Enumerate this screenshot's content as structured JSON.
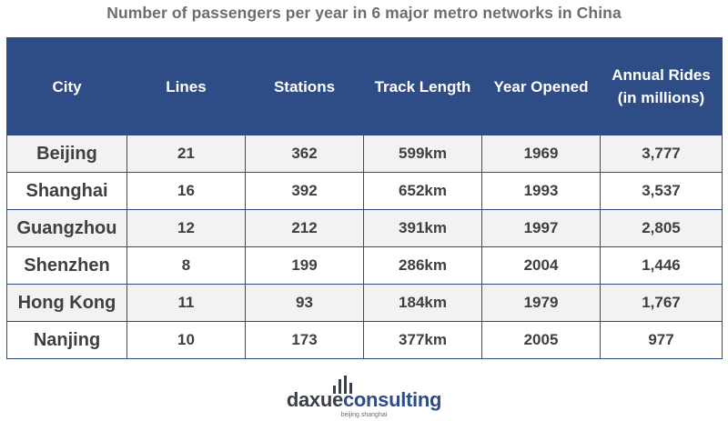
{
  "title": "Number of passengers per year in 6 major metro networks in China",
  "chart_data": {
    "type": "table",
    "columns": [
      {
        "lines": [
          "City"
        ]
      },
      {
        "lines": [
          "Lines"
        ]
      },
      {
        "lines": [
          "Stations"
        ]
      },
      {
        "lines": [
          "Track Length"
        ]
      },
      {
        "lines": [
          "Year Opened"
        ]
      },
      {
        "lines": [
          "Annual Rides",
          "(in millions)"
        ]
      }
    ],
    "rows": [
      [
        "Beijing",
        "21",
        "362",
        "599km",
        "1969",
        "3,777"
      ],
      [
        "Shanghai",
        "16",
        "392",
        "652km",
        "1993",
        "3,537"
      ],
      [
        "Guangzhou",
        "12",
        "212",
        "391km",
        "1997",
        "2,805"
      ],
      [
        "Shenzhen",
        "8",
        "199",
        "286km",
        "2004",
        "1,446"
      ],
      [
        "Hong Kong",
        "11",
        "93",
        "184km",
        "1979",
        "1,767"
      ],
      [
        "Nanjing",
        "10",
        "173",
        "377km",
        "2005",
        "977"
      ]
    ]
  },
  "logo": {
    "brand_part1": "daxue",
    "brand_part2": "consulting",
    "tagline": "beijing shanghai",
    "icon": "bar-chart-icon",
    "color_dark": "#3b3f4a",
    "color_accent": "#2e4c86"
  },
  "colors": {
    "header_bg": "#2e4c86",
    "header_text": "#ffffff",
    "cell_text": "#3f3f3f",
    "alt_row_bg": "#f2f2f2",
    "title_text": "#6d6d6d"
  }
}
